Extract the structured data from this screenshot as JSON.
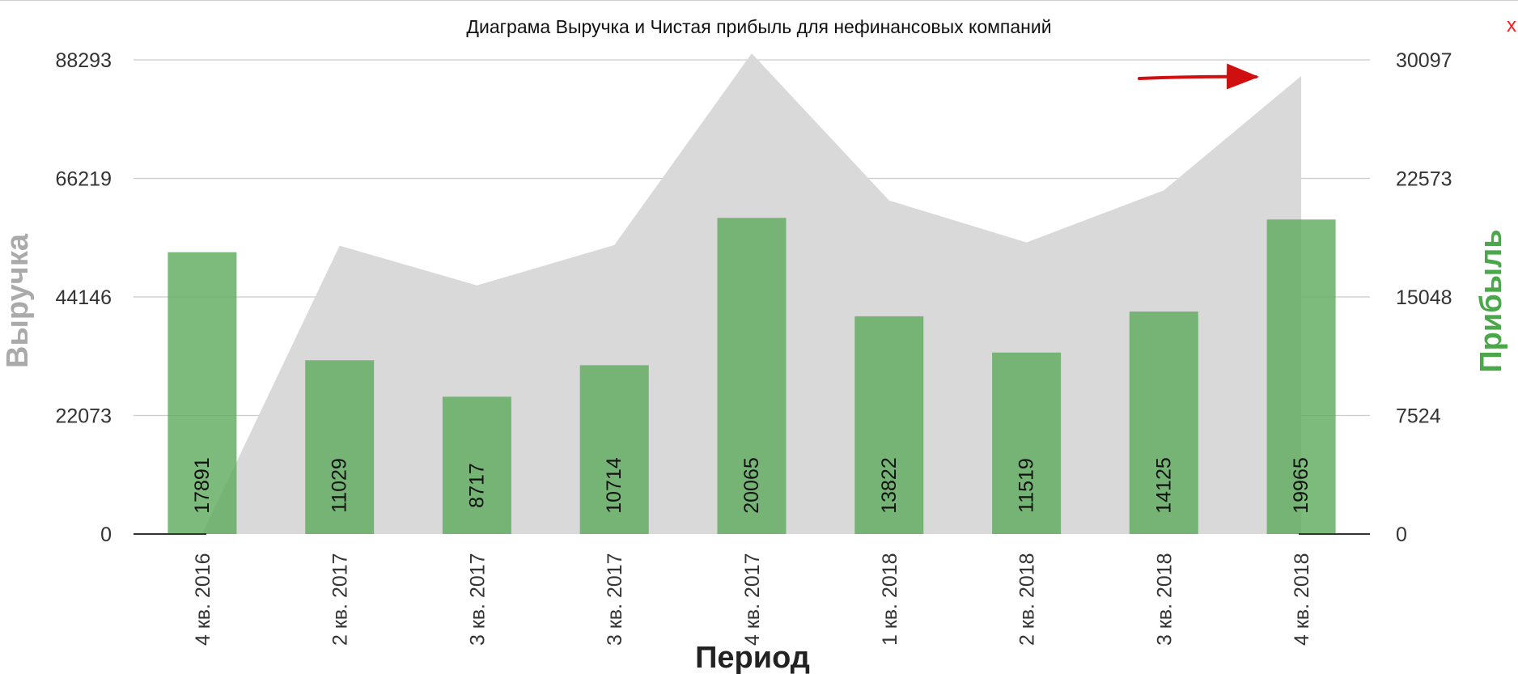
{
  "title": "Диаграма Выручка и Чистая прибыль для нефинансовых компаний",
  "close_label": "x",
  "chart_data": {
    "type": "bar",
    "title": "Диаграма Выручка и Чистая прибыль для нефинансовых компаний",
    "xlabel": "Период",
    "ylabel_left": "Выручка",
    "ylabel_right": "Прибыль",
    "categories": [
      "4 кв. 2016",
      "2 кв. 2017",
      "3 кв. 2017",
      "3 кв. 2017",
      "4 кв. 2017",
      "1 кв. 2018",
      "2 кв. 2018",
      "3 кв. 2018",
      "4 кв. 2018"
    ],
    "y_left_ticks": [
      "0",
      "22073",
      "44146",
      "66219",
      "88293"
    ],
    "y_right_ticks": [
      "0",
      "7524",
      "15048",
      "22573",
      "30097"
    ],
    "ylim_left": [
      0,
      88293
    ],
    "ylim_right": [
      0,
      30097
    ],
    "grid": true,
    "series": [
      {
        "name": "Выручка",
        "type": "area",
        "axis": "left",
        "color": "#d9d9d9",
        "values": [
          0,
          53700,
          46300,
          53800,
          89500,
          62100,
          54300,
          64000,
          85300
        ]
      },
      {
        "name": "Прибыль",
        "type": "bar",
        "axis": "right",
        "color": "#5fac5f",
        "values": [
          17891,
          11029,
          8717,
          10714,
          20065,
          13822,
          11519,
          14125,
          19965
        ],
        "labels": [
          "17891",
          "11029",
          "8717",
          "10714",
          "20065",
          "13822",
          "11519",
          "14125",
          "19965"
        ]
      }
    ],
    "annotations": [
      {
        "kind": "arrow",
        "color": "#d01010",
        "direction": "right",
        "points_to": "4 кв. 2018"
      }
    ]
  }
}
